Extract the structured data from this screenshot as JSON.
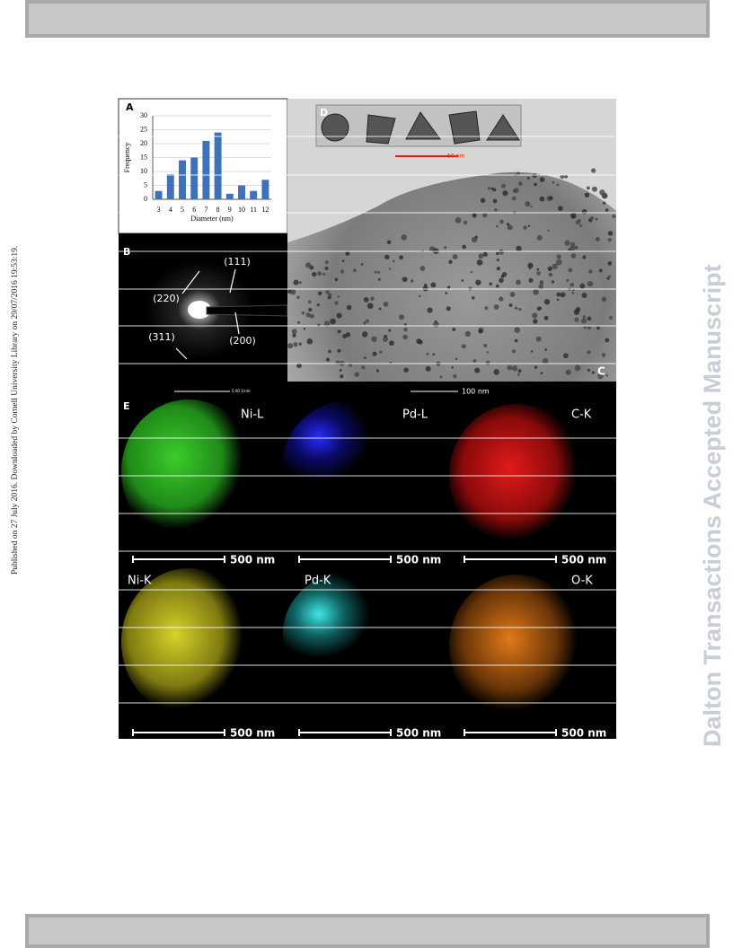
{
  "margin_note": "Published on 27 July 2016. Downloaded by Cornell University Library on 29/07/2016 19:53:19.",
  "watermark": "Dalton Transactions Accepted Manuscript",
  "figure": {
    "panel_a": {
      "label": "A"
    },
    "panel_b": {
      "label": "B",
      "planes": [
        "(111)",
        "(220)",
        "(200)",
        "(311)"
      ],
      "scale": "5.00 1/nm"
    },
    "panel_c": {
      "label": "C",
      "scale": "100 nm"
    },
    "panel_d": {
      "label": "D",
      "scale": "50 nm"
    },
    "panel_e": {
      "label": "E",
      "maps": [
        {
          "element": "Ni-L",
          "scale": "500 nm"
        },
        {
          "element": "Pd-L",
          "scale": "500 nm"
        },
        {
          "element": "C-K",
          "scale": "500 nm"
        },
        {
          "element": "Ni-K",
          "scale": "500 nm"
        },
        {
          "element": "Pd-K",
          "scale": "500 nm"
        },
        {
          "element": "O-K",
          "scale": "500 nm"
        }
      ]
    }
  },
  "chart_data": {
    "type": "bar",
    "x_label": "Diameter (nm)",
    "y_label": "Frequency",
    "categories": [
      "3",
      "4",
      "5",
      "6",
      "7",
      "8",
      "9",
      "10",
      "11",
      "12"
    ],
    "values": [
      3,
      9,
      14,
      15,
      21,
      24,
      2,
      5,
      3,
      7
    ],
    "color": "#3d72b8",
    "ylim": [
      0,
      30
    ],
    "yticks": [
      0,
      5,
      10,
      15,
      20,
      25,
      30
    ],
    "grid": true
  }
}
